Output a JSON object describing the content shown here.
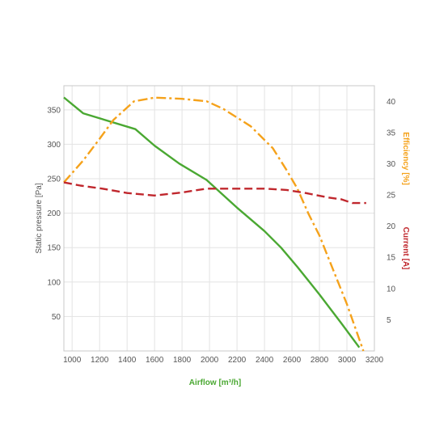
{
  "chart_data": {
    "type": "line",
    "xlabel": "Airflow [m³/h]",
    "ylabel_left": "Static pressure [Pa]",
    "ylabel_right": [
      "Efficiency [%]",
      "Current [A]"
    ],
    "xlim": [
      940,
      3200
    ],
    "ylim_left": [
      0,
      385
    ],
    "ylim_right": [
      0,
      42.5
    ],
    "x_ticks": [
      "1000",
      "1200",
      "1400",
      "1600",
      "1800",
      "2000",
      "2200",
      "2400",
      "2600",
      "2800",
      "3000",
      "3200"
    ],
    "y_left_ticks": [
      "50",
      "100",
      "150",
      "200",
      "250",
      "300",
      "350"
    ],
    "y_right_ticks": [
      "5",
      "10",
      "15",
      "20",
      "25",
      "30",
      "35",
      "40"
    ],
    "grid": true,
    "series": [
      {
        "key": "pressure",
        "axis": "left",
        "color": "#4aa832",
        "dash": "solid",
        "points": [
          [
            940,
            368
          ],
          [
            1080,
            345
          ],
          [
            1460,
            322
          ],
          [
            1600,
            298
          ],
          [
            1780,
            272
          ],
          [
            1980,
            248
          ],
          [
            2200,
            208
          ],
          [
            2400,
            174
          ],
          [
            2520,
            150
          ],
          [
            2640,
            122
          ],
          [
            2800,
            82
          ],
          [
            2960,
            40
          ],
          [
            3090,
            5
          ]
        ]
      },
      {
        "key": "efficiency",
        "axis": "right",
        "color": "#f5a21b",
        "dash": "dashdot",
        "points": [
          [
            940,
            27
          ],
          [
            1080,
            30.5
          ],
          [
            1200,
            34
          ],
          [
            1300,
            37
          ],
          [
            1450,
            40
          ],
          [
            1600,
            40.6
          ],
          [
            1800,
            40.4
          ],
          [
            1980,
            40
          ],
          [
            2100,
            38.8
          ],
          [
            2300,
            36
          ],
          [
            2460,
            32.5
          ],
          [
            2560,
            29
          ],
          [
            2640,
            26
          ],
          [
            2720,
            22
          ],
          [
            2800,
            18.5
          ],
          [
            2900,
            13
          ],
          [
            3000,
            7.5
          ],
          [
            3120,
            0
          ]
        ]
      },
      {
        "key": "current",
        "axis": "right",
        "color": "#c0272d",
        "dash": "dashed",
        "points": [
          [
            940,
            27
          ],
          [
            1060,
            26.5
          ],
          [
            1220,
            26
          ],
          [
            1400,
            25.3
          ],
          [
            1600,
            24.9
          ],
          [
            1800,
            25.4
          ],
          [
            1980,
            26
          ],
          [
            2200,
            26
          ],
          [
            2400,
            26
          ],
          [
            2560,
            25.8
          ],
          [
            2700,
            25.3
          ],
          [
            2860,
            24.6
          ],
          [
            2960,
            24.3
          ],
          [
            3040,
            23.7
          ],
          [
            3140,
            23.7
          ]
        ]
      }
    ]
  },
  "colors": {
    "pressure": "#4aa832",
    "efficiency": "#f5a21b",
    "current": "#c0272d",
    "axis_text": "#555555"
  }
}
